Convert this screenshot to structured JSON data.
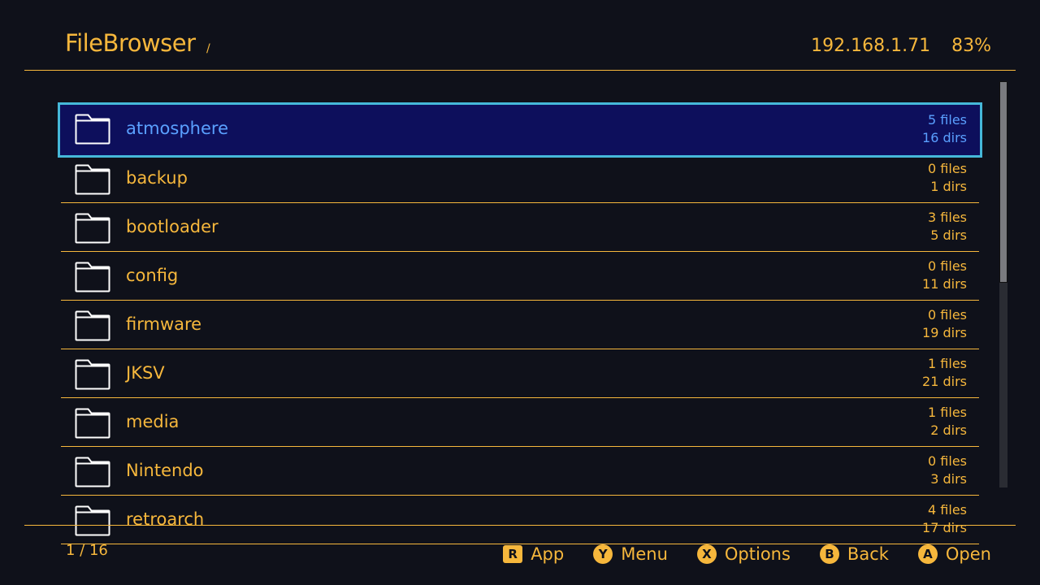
{
  "header": {
    "title": "FileBrowser",
    "path": "/",
    "ip": "192.168.1.71",
    "battery": "83%"
  },
  "list": {
    "selected_index": 0,
    "items": [
      {
        "name": "atmosphere",
        "files": "5 files",
        "dirs": "16 dirs"
      },
      {
        "name": "backup",
        "files": "0 files",
        "dirs": "1 dirs"
      },
      {
        "name": "bootloader",
        "files": "3 files",
        "dirs": "5 dirs"
      },
      {
        "name": "config",
        "files": "0 files",
        "dirs": "11 dirs"
      },
      {
        "name": "firmware",
        "files": "0 files",
        "dirs": "19 dirs"
      },
      {
        "name": "JKSV",
        "files": "1 files",
        "dirs": "21 dirs"
      },
      {
        "name": "media",
        "files": "1 files",
        "dirs": "2 dirs"
      },
      {
        "name": "Nintendo",
        "files": "0 files",
        "dirs": "3 dirs"
      },
      {
        "name": "retroarch",
        "files": "4 files",
        "dirs": "17 dirs"
      }
    ]
  },
  "footer": {
    "pager": "1 / 16",
    "buttons": [
      {
        "glyph": "R",
        "label": "App"
      },
      {
        "glyph": "Y",
        "label": "Menu"
      },
      {
        "glyph": "X",
        "label": "Options"
      },
      {
        "glyph": "B",
        "label": "Back"
      },
      {
        "glyph": "A",
        "label": "Open"
      }
    ]
  },
  "colors": {
    "accent": "#f6b73c",
    "background": "#0f111a",
    "selection_bg": "#0d0f5c",
    "selection_border": "#45b8d9",
    "selection_text": "#5aa0ff"
  }
}
